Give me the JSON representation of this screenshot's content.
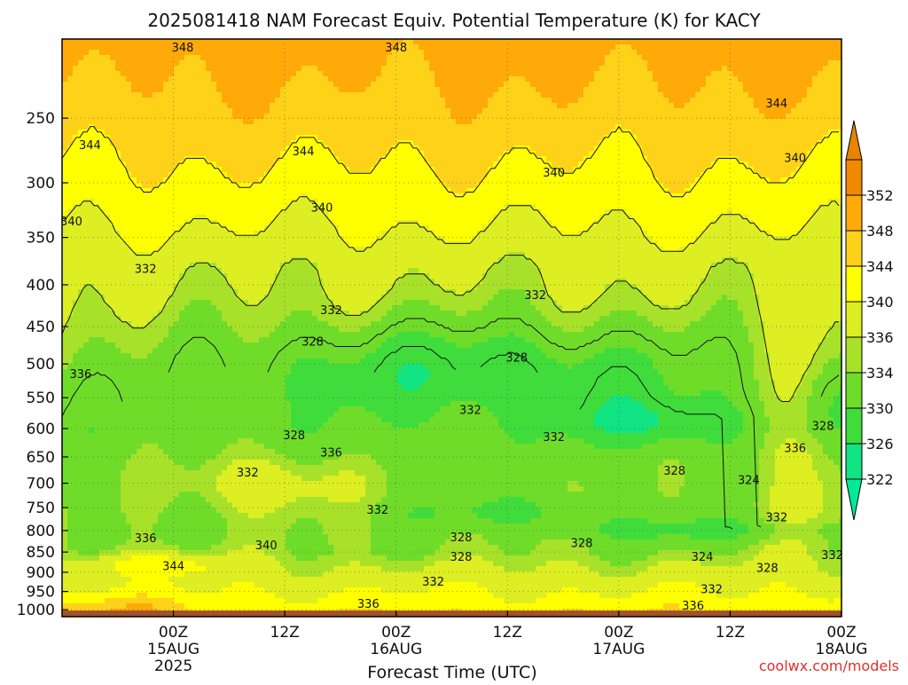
{
  "chart_data": {
    "type": "heatmap",
    "title": "2025081418 NAM Forecast Equiv. Potential Temperature (K) for KACY",
    "xlabel": "Forecast Time (UTC)",
    "ylabel": "",
    "yaxis": {
      "scale": "log",
      "reversed": true,
      "range": [
        200,
        1020
      ],
      "ticks": [
        250,
        300,
        350,
        400,
        450,
        500,
        550,
        600,
        650,
        700,
        750,
        800,
        850,
        900,
        950,
        1000
      ]
    },
    "xaxis": {
      "range": [
        -6,
        78
      ],
      "unit": "hours since 2025081418",
      "ticks": [
        {
          "value": 6,
          "lines": [
            "00Z",
            "15AUG",
            "2025"
          ]
        },
        {
          "value": 18,
          "lines": [
            "12Z"
          ]
        },
        {
          "value": 30,
          "lines": [
            "00Z",
            "16AUG"
          ]
        },
        {
          "value": 42,
          "lines": [
            "12Z"
          ]
        },
        {
          "value": 54,
          "lines": [
            "00Z",
            "17AUG"
          ]
        },
        {
          "value": 66,
          "lines": [
            "12Z"
          ]
        },
        {
          "value": 78,
          "lines": [
            "00Z",
            "18AUG"
          ]
        }
      ]
    },
    "grid": true,
    "colorbar": {
      "placement": "right",
      "levels": [
        322,
        326,
        330,
        334,
        336,
        340,
        344,
        348,
        352
      ],
      "colors": [
        "#12e383",
        "#3fdc3c",
        "#6fdc2a",
        "#a8e12a",
        "#ddee22",
        "#ffff00",
        "#ffd21a",
        "#ffaa08",
        "#f08a00"
      ],
      "under_color": "#00ea9a",
      "over_color": "#e88400"
    },
    "contour_labels": [
      {
        "x": 7,
        "p": 205,
        "v": "348"
      },
      {
        "x": 30,
        "p": 205,
        "v": "348"
      },
      {
        "x": -3,
        "p": 270,
        "v": "344"
      },
      {
        "x": 20,
        "p": 275,
        "v": "344"
      },
      {
        "x": 71,
        "p": 240,
        "v": "344"
      },
      {
        "x": -5,
        "p": 335,
        "v": "340"
      },
      {
        "x": 22,
        "p": 322,
        "v": "340"
      },
      {
        "x": 47,
        "p": 292,
        "v": "340"
      },
      {
        "x": 73,
        "p": 280,
        "v": "340"
      },
      {
        "x": 3,
        "p": 383,
        "v": "332"
      },
      {
        "x": 23,
        "p": 430,
        "v": "332"
      },
      {
        "x": 45,
        "p": 412,
        "v": "332"
      },
      {
        "x": 21,
        "p": 470,
        "v": "328"
      },
      {
        "x": 43,
        "p": 492,
        "v": "328"
      },
      {
        "x": -4,
        "p": 515,
        "v": "336"
      },
      {
        "x": 76,
        "p": 596,
        "v": "328"
      },
      {
        "x": 73,
        "p": 635,
        "v": "336"
      },
      {
        "x": 38,
        "p": 570,
        "v": "332"
      },
      {
        "x": 47,
        "p": 615,
        "v": "332"
      },
      {
        "x": 19,
        "p": 612,
        "v": "328"
      },
      {
        "x": 23,
        "p": 643,
        "v": "336"
      },
      {
        "x": 14,
        "p": 680,
        "v": "332"
      },
      {
        "x": 60,
        "p": 677,
        "v": "328"
      },
      {
        "x": 68,
        "p": 695,
        "v": "324"
      },
      {
        "x": 28,
        "p": 755,
        "v": "332"
      },
      {
        "x": 71,
        "p": 772,
        "v": "332"
      },
      {
        "x": 3,
        "p": 818,
        "v": "336"
      },
      {
        "x": 37,
        "p": 816,
        "v": "328"
      },
      {
        "x": 50,
        "p": 830,
        "v": "328"
      },
      {
        "x": 16,
        "p": 835,
        "v": "340"
      },
      {
        "x": 37,
        "p": 862,
        "v": "328"
      },
      {
        "x": 63,
        "p": 862,
        "v": "324"
      },
      {
        "x": 77,
        "p": 858,
        "v": "332"
      },
      {
        "x": 6,
        "p": 885,
        "v": "344"
      },
      {
        "x": 70,
        "p": 890,
        "v": "328"
      },
      {
        "x": 34,
        "p": 925,
        "v": "332"
      },
      {
        "x": 64,
        "p": 945,
        "v": "332"
      },
      {
        "x": 27,
        "p": 985,
        "v": "336"
      },
      {
        "x": 62,
        "p": 990,
        "v": "336"
      }
    ]
  },
  "credit": "coolwx.com/models"
}
